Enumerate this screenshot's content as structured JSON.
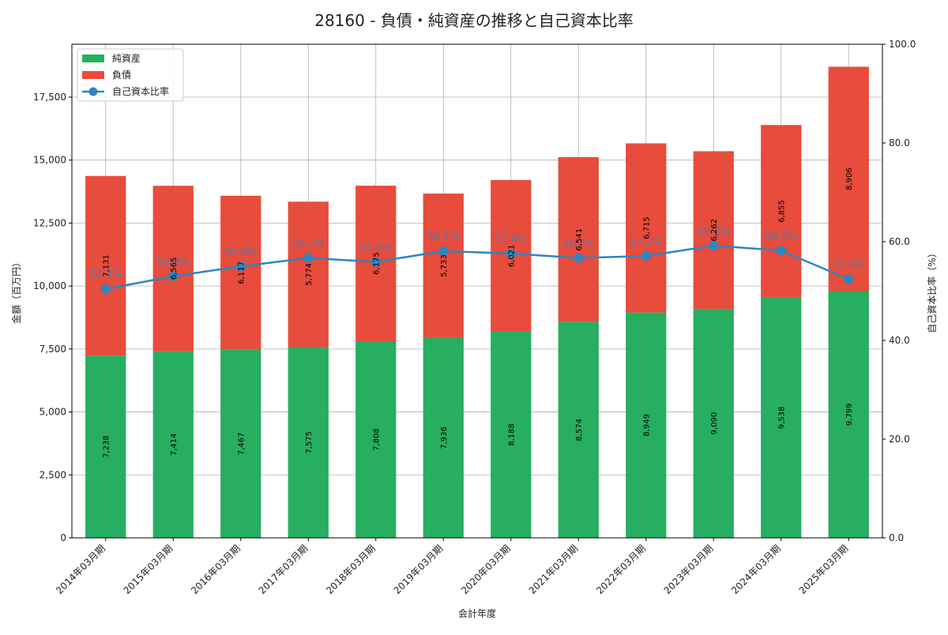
{
  "chart_data": {
    "type": "bar",
    "title": "28160 - 負債・純資産の推移と自己資本比率",
    "xlabel": "会計年度",
    "ylabel": "金額（百万円）",
    "y2label": "自己資本比率（%）",
    "categories": [
      "2014年03月期",
      "2015年03月期",
      "2016年03月期",
      "2017年03月期",
      "2018年03月期",
      "2019年03月期",
      "2020年03月期",
      "2021年03月期",
      "2022年03月期",
      "2023年03月期",
      "2024年03月期",
      "2025年03月期"
    ],
    "series": [
      {
        "name": "純資産",
        "kind": "bar",
        "axis": "left",
        "color": "#27ae60",
        "values": [
          7238,
          7414,
          7467,
          7575,
          7808,
          7936,
          8188,
          8574,
          8949,
          9090,
          9538,
          9799
        ],
        "labels": [
          "7,238",
          "7,414",
          "7,467",
          "7,575",
          "7,808",
          "7,936",
          "8,188",
          "8,574",
          "8,949",
          "9,090",
          "9,538",
          "9,799"
        ]
      },
      {
        "name": "負債",
        "kind": "bar",
        "axis": "left",
        "color": "#e74c3c",
        "values": [
          7131,
          6565,
          6117,
          5774,
          6175,
          5733,
          6021,
          6541,
          6715,
          6262,
          6855,
          8906
        ],
        "labels": [
          "7,131",
          "6,565",
          "6,117",
          "5,774",
          "6,175",
          "5,733",
          "6,021",
          "6,541",
          "6,715",
          "6,262",
          "6,855",
          "8,906"
        ]
      },
      {
        "name": "自己資本比率",
        "kind": "line",
        "axis": "right",
        "color": "#2e86c1",
        "values": [
          50.4,
          53.0,
          55.0,
          56.7,
          55.9,
          58.1,
          57.6,
          56.7,
          57.1,
          59.2,
          58.2,
          52.4
        ],
        "labels": [
          "50.4%",
          "53.0%",
          "55.0%",
          "56.7%",
          "55.9%",
          "58.1%",
          "57.6%",
          "56.7%",
          "57.1%",
          "59.2%",
          "58.2%",
          "52.4%"
        ]
      }
    ],
    "ylim": [
      0,
      19600
    ],
    "yticks": [
      0,
      2500,
      5000,
      7500,
      10000,
      12500,
      15000,
      17500
    ],
    "ytick_labels": [
      "0",
      "2,500",
      "5,000",
      "7,500",
      "10,000",
      "12,500",
      "15,000",
      "17,500"
    ],
    "y2lim": [
      0,
      100
    ],
    "y2ticks": [
      0,
      20,
      40,
      60,
      80,
      100
    ],
    "y2tick_labels": [
      "0.0",
      "20.0",
      "40.0",
      "60.0",
      "80.0",
      "100.0"
    ],
    "grid": true,
    "legend": "top-left"
  }
}
